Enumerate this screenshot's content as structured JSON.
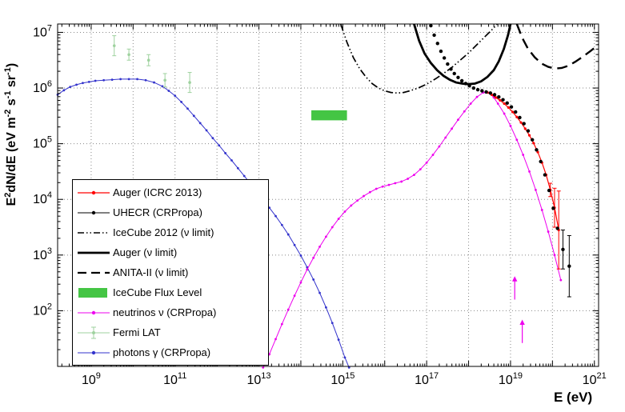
{
  "figure": {
    "background": "#ffffff"
  },
  "chart_data": {
    "type": "line",
    "title": "",
    "xlabel": "E (eV)",
    "ylabel": "E^2dN/dE (eV m^-2 s^-1 sr^-1)",
    "x_scale": "log10",
    "y_scale": "log10",
    "x_range_log10": [
      8.2,
      21.1
    ],
    "y_range_log10": [
      1.0,
      7.15
    ],
    "x_tick_exponents": [
      9,
      11,
      13,
      15,
      17,
      19,
      21
    ],
    "y_tick_exponents": [
      2,
      3,
      4,
      5,
      6,
      7
    ],
    "grid": "dotted-every-decade",
    "band": {
      "id": "icecube_flux_level",
      "label": "IceCube Flux Level",
      "color": "#44c544",
      "sample": "box",
      "x_log10": [
        14.25,
        15.1
      ],
      "y_log10": [
        5.42,
        5.6
      ]
    },
    "series": [
      {
        "id": "photons_crpropa",
        "name": "photons γ (CRPropa)",
        "color": "#3333cc",
        "line": true,
        "width": 1,
        "marker": true,
        "marker_r": 1.4,
        "sample": "line-marker",
        "points_log10": [
          [
            8.2,
            5.88
          ],
          [
            8.35,
            5.96
          ],
          [
            8.5,
            6.02
          ],
          [
            8.65,
            6.06
          ],
          [
            8.8,
            6.09
          ],
          [
            8.95,
            6.11
          ],
          [
            9.1,
            6.13
          ],
          [
            9.3,
            6.14
          ],
          [
            9.5,
            6.15
          ],
          [
            9.7,
            6.16
          ],
          [
            9.9,
            6.16
          ],
          [
            10.1,
            6.16
          ],
          [
            10.3,
            6.14
          ],
          [
            10.5,
            6.1
          ],
          [
            10.7,
            6.03
          ],
          [
            10.85,
            5.95
          ],
          [
            11.0,
            5.86
          ],
          [
            11.15,
            5.75
          ],
          [
            11.3,
            5.63
          ],
          [
            11.45,
            5.5
          ],
          [
            11.6,
            5.37
          ],
          [
            11.75,
            5.24
          ],
          [
            11.9,
            5.1
          ],
          [
            12.05,
            4.97
          ],
          [
            12.2,
            4.83
          ],
          [
            12.35,
            4.7
          ],
          [
            12.5,
            4.56
          ],
          [
            12.65,
            4.42
          ],
          [
            12.8,
            4.28
          ],
          [
            12.95,
            4.14
          ],
          [
            13.1,
            4.0
          ],
          [
            13.25,
            3.85
          ],
          [
            13.4,
            3.7
          ],
          [
            13.55,
            3.54
          ],
          [
            13.7,
            3.37
          ],
          [
            13.85,
            3.18
          ],
          [
            14.0,
            2.99
          ],
          [
            14.15,
            2.78
          ],
          [
            14.3,
            2.56
          ],
          [
            14.45,
            2.32
          ],
          [
            14.6,
            2.06
          ],
          [
            14.75,
            1.78
          ],
          [
            14.9,
            1.48
          ],
          [
            15.05,
            1.16
          ],
          [
            15.15,
            0.98
          ]
        ]
      },
      {
        "id": "neutrinos_crpropa",
        "name": "neutrinos ν (CRPropa)",
        "color": "#ee00ee",
        "line": true,
        "width": 1,
        "marker": true,
        "marker_r": 1.4,
        "sample": "line-marker",
        "points_log10": [
          [
            13.1,
            0.98
          ],
          [
            13.25,
            1.22
          ],
          [
            13.4,
            1.49
          ],
          [
            13.55,
            1.76
          ],
          [
            13.7,
            2.02
          ],
          [
            13.85,
            2.27
          ],
          [
            14.0,
            2.51
          ],
          [
            14.15,
            2.74
          ],
          [
            14.3,
            2.95
          ],
          [
            14.45,
            3.15
          ],
          [
            14.6,
            3.33
          ],
          [
            14.75,
            3.5
          ],
          [
            14.9,
            3.65
          ],
          [
            15.05,
            3.78
          ],
          [
            15.2,
            3.89
          ],
          [
            15.35,
            3.98
          ],
          [
            15.5,
            4.06
          ],
          [
            15.65,
            4.13
          ],
          [
            15.8,
            4.19
          ],
          [
            15.95,
            4.23
          ],
          [
            16.1,
            4.26
          ],
          [
            16.25,
            4.29
          ],
          [
            16.4,
            4.32
          ],
          [
            16.55,
            4.37
          ],
          [
            16.7,
            4.44
          ],
          [
            16.85,
            4.54
          ],
          [
            17.0,
            4.66
          ],
          [
            17.15,
            4.8
          ],
          [
            17.3,
            4.95
          ],
          [
            17.45,
            5.11
          ],
          [
            17.6,
            5.27
          ],
          [
            17.75,
            5.43
          ],
          [
            17.9,
            5.58
          ],
          [
            18.05,
            5.72
          ],
          [
            18.2,
            5.84
          ],
          [
            18.35,
            5.92
          ],
          [
            18.5,
            5.91
          ],
          [
            18.6,
            5.83
          ],
          [
            18.7,
            5.72
          ],
          [
            18.85,
            5.54
          ],
          [
            19.0,
            5.32
          ],
          [
            19.15,
            5.07
          ],
          [
            19.3,
            4.8
          ],
          [
            19.45,
            4.5
          ],
          [
            19.6,
            4.17
          ],
          [
            19.75,
            3.81
          ],
          [
            19.9,
            3.42
          ],
          [
            20.05,
            3.0
          ],
          [
            20.2,
            2.55
          ]
        ],
        "arrows_log10": [
          [
            19.1,
            2.2,
            0.42
          ],
          [
            19.28,
            1.42,
            0.42
          ]
        ]
      },
      {
        "id": "icecube2012_limit",
        "name": "IceCube 2012 (ν limit)",
        "color": "#000000",
        "line": true,
        "width": 1.7,
        "dash": "9 3 1.5 3 1.5 3",
        "marker": false,
        "sample": "dashdotdot",
        "points_log10": [
          [
            14.95,
            7.15
          ],
          [
            15.1,
            6.82
          ],
          [
            15.25,
            6.55
          ],
          [
            15.4,
            6.35
          ],
          [
            15.55,
            6.2
          ],
          [
            15.7,
            6.08
          ],
          [
            15.85,
            6.0
          ],
          [
            16.0,
            5.95
          ],
          [
            16.15,
            5.92
          ],
          [
            16.3,
            5.91
          ],
          [
            16.45,
            5.92
          ],
          [
            16.6,
            5.95
          ],
          [
            16.8,
            6.0
          ],
          [
            17.0,
            6.07
          ],
          [
            17.2,
            6.16
          ],
          [
            17.4,
            6.26
          ],
          [
            17.6,
            6.37
          ],
          [
            17.8,
            6.5
          ],
          [
            18.0,
            6.63
          ],
          [
            18.2,
            6.78
          ],
          [
            18.4,
            6.93
          ],
          [
            18.6,
            7.08
          ],
          [
            18.68,
            7.15
          ]
        ]
      },
      {
        "id": "auger_nu_limit",
        "name": "Auger (ν limit)",
        "color": "#000000",
        "line": true,
        "width": 2.8,
        "marker": false,
        "sample": "solid",
        "points_log10": [
          [
            16.7,
            7.15
          ],
          [
            16.82,
            6.85
          ],
          [
            16.95,
            6.62
          ],
          [
            17.1,
            6.45
          ],
          [
            17.25,
            6.32
          ],
          [
            17.4,
            6.22
          ],
          [
            17.55,
            6.15
          ],
          [
            17.7,
            6.1
          ],
          [
            17.85,
            6.08
          ],
          [
            18.0,
            6.07
          ],
          [
            18.15,
            6.08
          ],
          [
            18.3,
            6.12
          ],
          [
            18.45,
            6.2
          ],
          [
            18.6,
            6.32
          ],
          [
            18.72,
            6.48
          ],
          [
            18.84,
            6.7
          ],
          [
            18.94,
            6.95
          ],
          [
            19.0,
            7.15
          ]
        ]
      },
      {
        "id": "anita2_limit",
        "name": "ANITA-II (ν limit)",
        "color": "#000000",
        "line": true,
        "width": 2.4,
        "dash": "13 7",
        "marker": false,
        "sample": "longdash",
        "points_log10": [
          [
            19.15,
            7.15
          ],
          [
            19.28,
            6.9
          ],
          [
            19.42,
            6.7
          ],
          [
            19.58,
            6.55
          ],
          [
            19.74,
            6.44
          ],
          [
            19.9,
            6.38
          ],
          [
            20.06,
            6.35
          ],
          [
            20.22,
            6.36
          ],
          [
            20.38,
            6.4
          ],
          [
            20.54,
            6.47
          ],
          [
            20.7,
            6.55
          ],
          [
            20.9,
            6.66
          ],
          [
            21.1,
            6.78
          ]
        ]
      },
      {
        "id": "auger_icrc2013",
        "name": "Auger (ICRC 2013)",
        "color": "#ff0000",
        "line": true,
        "width": 1.2,
        "marker": true,
        "marker_r": 1.6,
        "sample": "line-marker",
        "points_log10": [
          [
            18.45,
            5.92
          ],
          [
            18.55,
            5.88
          ],
          [
            18.65,
            5.83
          ],
          [
            18.75,
            5.78
          ],
          [
            18.85,
            5.72
          ],
          [
            18.95,
            5.65
          ],
          [
            19.05,
            5.57
          ],
          [
            19.15,
            5.48
          ],
          [
            19.25,
            5.38
          ],
          [
            19.35,
            5.27
          ],
          [
            19.45,
            5.15
          ],
          [
            19.55,
            5.01
          ],
          [
            19.65,
            4.85
          ],
          [
            19.75,
            4.66
          ],
          [
            19.85,
            4.44
          ],
          [
            19.95,
            4.17,
            0.12
          ],
          [
            20.05,
            3.85,
            0.35
          ],
          [
            20.15,
            3.45,
            0.7
          ]
        ]
      },
      {
        "id": "uhecr_crpropa",
        "name": "UHECR (CRPropa)",
        "color": "#000000",
        "line": false,
        "marker": true,
        "marker_r": 2.2,
        "sample": "line-marker",
        "points_log10": [
          [
            17.1,
            7.12
          ],
          [
            17.18,
            6.95
          ],
          [
            17.26,
            6.8
          ],
          [
            17.34,
            6.66
          ],
          [
            17.42,
            6.54
          ],
          [
            17.5,
            6.43
          ],
          [
            17.58,
            6.34
          ],
          [
            17.66,
            6.26
          ],
          [
            17.75,
            6.19
          ],
          [
            17.84,
            6.13
          ],
          [
            17.93,
            6.08
          ],
          [
            18.02,
            6.04
          ],
          [
            18.12,
            6.0
          ],
          [
            18.22,
            5.97
          ],
          [
            18.32,
            5.95
          ],
          [
            18.42,
            5.93
          ],
          [
            18.52,
            5.91
          ],
          [
            18.62,
            5.88
          ],
          [
            18.72,
            5.84
          ],
          [
            18.82,
            5.79
          ],
          [
            18.92,
            5.73
          ],
          [
            19.02,
            5.66
          ],
          [
            19.12,
            5.57
          ],
          [
            19.22,
            5.47
          ],
          [
            19.32,
            5.36
          ],
          [
            19.42,
            5.23
          ],
          [
            19.52,
            5.07
          ],
          [
            19.62,
            4.89
          ],
          [
            19.72,
            4.68
          ],
          [
            19.82,
            4.44
          ],
          [
            19.92,
            4.16
          ],
          [
            20.02,
            3.84
          ],
          [
            20.12,
            3.48
          ],
          [
            20.25,
            3.1,
            0.35
          ],
          [
            20.4,
            2.8,
            0.55
          ]
        ]
      },
      {
        "id": "fermi_lat",
        "name": "Fermi LAT",
        "color": "#9fd29f",
        "line": false,
        "marker": true,
        "marker_r": 1.8,
        "sample": "err-marker",
        "points_log10": [
          [
            9.55,
            6.76,
            0.18
          ],
          [
            9.9,
            6.6,
            0.1
          ],
          [
            10.37,
            6.5,
            0.1
          ],
          [
            10.76,
            6.14,
            0.12
          ],
          [
            11.35,
            6.1,
            0.18
          ]
        ]
      }
    ],
    "legend_entries": [
      {
        "label": "Auger (ICRC 2013)",
        "series": "auger_icrc2013"
      },
      {
        "label": "UHECR (CRPropa)",
        "series": "uhecr_crpropa"
      },
      {
        "label": "IceCube 2012 (ν limit)",
        "series": "icecube2012_limit"
      },
      {
        "label": "Auger (ν limit)",
        "series": "auger_nu_limit"
      },
      {
        "label": "ANITA-II (ν limit)",
        "series": "anita2_limit"
      },
      {
        "label": "IceCube Flux Level",
        "series": "icecube_flux_level"
      },
      {
        "label": "neutrinos ν (CRPropa)",
        "series": "neutrinos_crpropa"
      },
      {
        "label": "Fermi LAT",
        "series": "fermi_lat"
      },
      {
        "label": "photons γ (CRPropa)",
        "series": "photons_crpropa"
      }
    ]
  }
}
